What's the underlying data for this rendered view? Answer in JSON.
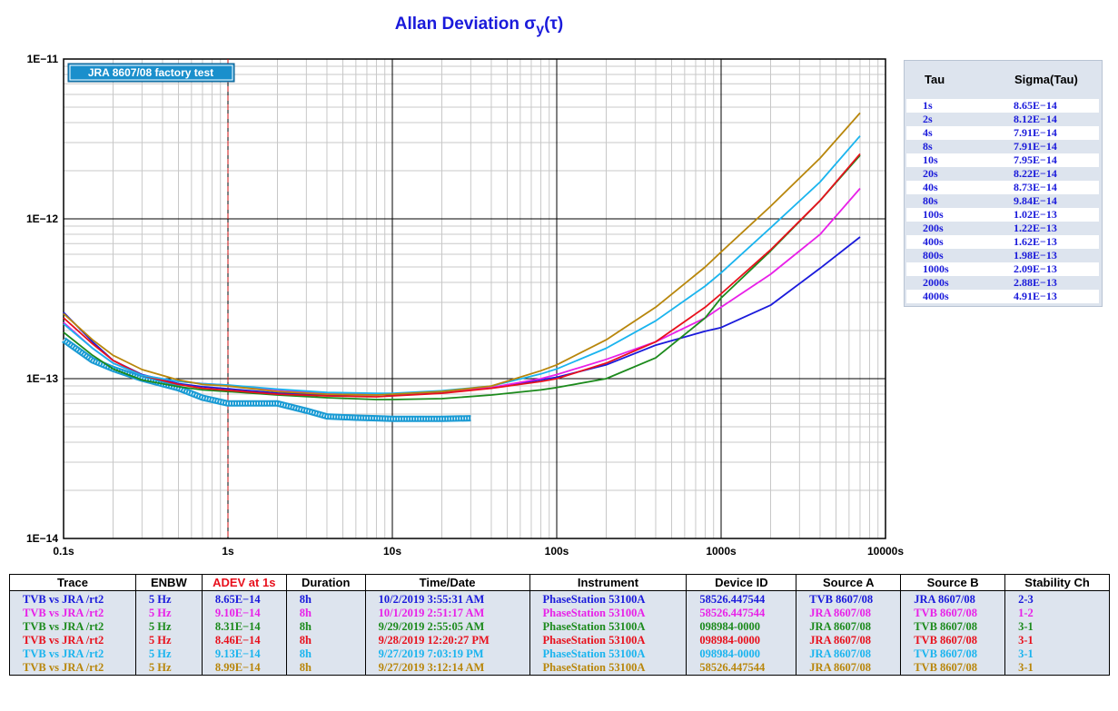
{
  "title": "Allan Deviation σ",
  "title_sub": "y",
  "title_tail": "(τ)",
  "legend_box": "JRA 8607/08 factory test",
  "chart_data": {
    "type": "line",
    "x_scale": "log",
    "y_scale": "log",
    "xlim": [
      0.1,
      10000
    ],
    "ylim": [
      1e-14,
      1e-11
    ],
    "x_tick_labels": [
      "0.1s",
      "1s",
      "10s",
      "100s",
      "1000s",
      "10000s"
    ],
    "y_tick_labels": [
      "1E−14",
      "1E−13",
      "1E−12",
      "1E−11"
    ],
    "grid": true,
    "vertical_marker_x": 1,
    "series": [
      {
        "color": "#1a1adb",
        "points": [
          [
            0.1,
            2.6e-13
          ],
          [
            0.15,
            1.7e-13
          ],
          [
            0.2,
            1.3e-13
          ],
          [
            0.3,
            1.06e-13
          ],
          [
            0.5,
            9.3e-14
          ],
          [
            0.7,
            8.9e-14
          ],
          [
            1,
            8.65e-14
          ],
          [
            2,
            8.12e-14
          ],
          [
            4,
            7.91e-14
          ],
          [
            8,
            7.91e-14
          ],
          [
            10,
            7.95e-14
          ],
          [
            20,
            8.22e-14
          ],
          [
            40,
            8.73e-14
          ],
          [
            80,
            9.84e-14
          ],
          [
            100,
            1.02e-13
          ],
          [
            200,
            1.22e-13
          ],
          [
            400,
            1.62e-13
          ],
          [
            800,
            1.98e-13
          ],
          [
            1000,
            2.09e-13
          ],
          [
            2000,
            2.88e-13
          ],
          [
            4000,
            4.91e-13
          ],
          [
            7000,
            7.7e-13
          ]
        ]
      },
      {
        "color": "#e820e8",
        "points": [
          [
            0.1,
            2.25e-13
          ],
          [
            0.15,
            1.55e-13
          ],
          [
            0.2,
            1.25e-13
          ],
          [
            0.3,
            1.05e-13
          ],
          [
            0.5,
            9.6e-14
          ],
          [
            0.7,
            9.3e-14
          ],
          [
            1,
            9.1e-14
          ],
          [
            2,
            8.5e-14
          ],
          [
            4,
            8.1e-14
          ],
          [
            8,
            8e-14
          ],
          [
            10,
            8e-14
          ],
          [
            20,
            8.3e-14
          ],
          [
            40,
            8.8e-14
          ],
          [
            80,
            1e-13
          ],
          [
            100,
            1.06e-13
          ],
          [
            200,
            1.32e-13
          ],
          [
            400,
            1.7e-13
          ],
          [
            800,
            2.4e-13
          ],
          [
            1000,
            2.8e-13
          ],
          [
            2000,
            4.5e-13
          ],
          [
            4000,
            8e-13
          ],
          [
            7000,
            1.55e-12
          ]
        ]
      },
      {
        "color": "#1c8a1c",
        "points": [
          [
            0.1,
            1.95e-13
          ],
          [
            0.15,
            1.4e-13
          ],
          [
            0.2,
            1.15e-13
          ],
          [
            0.3,
            9.8e-14
          ],
          [
            0.5,
            8.9e-14
          ],
          [
            0.7,
            8.5e-14
          ],
          [
            1,
            8.31e-14
          ],
          [
            2,
            7.9e-14
          ],
          [
            4,
            7.6e-14
          ],
          [
            8,
            7.4e-14
          ],
          [
            10,
            7.4e-14
          ],
          [
            20,
            7.5e-14
          ],
          [
            40,
            7.9e-14
          ],
          [
            80,
            8.5e-14
          ],
          [
            100,
            8.8e-14
          ],
          [
            200,
            1e-13
          ],
          [
            400,
            1.35e-13
          ],
          [
            800,
            2.4e-13
          ],
          [
            1000,
            3.2e-13
          ],
          [
            2000,
            6.3e-13
          ],
          [
            4000,
            1.3e-12
          ],
          [
            7000,
            2.5e-12
          ]
        ]
      },
      {
        "color": "#e8101c",
        "points": [
          [
            0.1,
            2.4e-13
          ],
          [
            0.15,
            1.65e-13
          ],
          [
            0.2,
            1.3e-13
          ],
          [
            0.3,
            1.05e-13
          ],
          [
            0.5,
            9.2e-14
          ],
          [
            0.7,
            8.7e-14
          ],
          [
            1,
            8.46e-14
          ],
          [
            2,
            8e-14
          ],
          [
            4,
            7.8e-14
          ],
          [
            8,
            7.7e-14
          ],
          [
            10,
            7.8e-14
          ],
          [
            20,
            8.1e-14
          ],
          [
            40,
            8.7e-14
          ],
          [
            80,
            9.6e-14
          ],
          [
            100,
            1e-13
          ],
          [
            200,
            1.25e-13
          ],
          [
            400,
            1.7e-13
          ],
          [
            800,
            2.8e-13
          ],
          [
            1000,
            3.4e-13
          ],
          [
            2000,
            6.4e-13
          ],
          [
            4000,
            1.3e-12
          ],
          [
            7000,
            2.55e-12
          ]
        ]
      },
      {
        "color": "#1ab4ee",
        "points": [
          [
            0.1,
            2.2e-13
          ],
          [
            0.15,
            1.55e-13
          ],
          [
            0.2,
            1.25e-13
          ],
          [
            0.3,
            1.05e-13
          ],
          [
            0.5,
            9.6e-14
          ],
          [
            0.7,
            9.3e-14
          ],
          [
            1,
            9.13e-14
          ],
          [
            2,
            8.6e-14
          ],
          [
            4,
            8.2e-14
          ],
          [
            8,
            8.1e-14
          ],
          [
            10,
            8.1e-14
          ],
          [
            20,
            8.4e-14
          ],
          [
            40,
            9e-14
          ],
          [
            80,
            1.07e-13
          ],
          [
            100,
            1.15e-13
          ],
          [
            200,
            1.55e-13
          ],
          [
            400,
            2.3e-13
          ],
          [
            800,
            3.8e-13
          ],
          [
            1000,
            4.6e-13
          ],
          [
            2000,
            8.8e-13
          ],
          [
            4000,
            1.7e-12
          ],
          [
            7000,
            3.3e-12
          ]
        ]
      },
      {
        "color": "#b8860b",
        "points": [
          [
            0.1,
            2.55e-13
          ],
          [
            0.15,
            1.75e-13
          ],
          [
            0.2,
            1.4e-13
          ],
          [
            0.3,
            1.14e-13
          ],
          [
            0.5,
            9.8e-14
          ],
          [
            0.7,
            9.2e-14
          ],
          [
            1,
            8.99e-14
          ],
          [
            2,
            8.3e-14
          ],
          [
            4,
            8e-14
          ],
          [
            8,
            7.9e-14
          ],
          [
            10,
            8e-14
          ],
          [
            20,
            8.3e-14
          ],
          [
            40,
            9e-14
          ],
          [
            80,
            1.12e-13
          ],
          [
            100,
            1.22e-13
          ],
          [
            200,
            1.75e-13
          ],
          [
            400,
            2.8e-13
          ],
          [
            800,
            5e-13
          ],
          [
            1000,
            6.2e-13
          ],
          [
            2000,
            1.2e-12
          ],
          [
            4000,
            2.4e-12
          ],
          [
            7000,
            4.6e-12
          ]
        ]
      }
    ],
    "highlight_series": {
      "color": "#1a9bd4",
      "points": [
        [
          0.1,
          1.75e-13
        ],
        [
          0.15,
          1.3e-13
        ],
        [
          0.2,
          1.15e-13
        ],
        [
          0.3,
          1e-13
        ],
        [
          0.5,
          8.7e-14
        ],
        [
          0.7,
          7.6e-14
        ],
        [
          1,
          7e-14
        ],
        [
          1.5,
          7e-14
        ],
        [
          2,
          7e-14
        ],
        [
          3,
          6.3e-14
        ],
        [
          4,
          5.8e-14
        ],
        [
          6,
          5.7e-14
        ],
        [
          8,
          5.65e-14
        ],
        [
          10,
          5.6e-14
        ],
        [
          20,
          5.6e-14
        ],
        [
          30,
          5.65e-14
        ]
      ]
    }
  },
  "sigma_table": {
    "headers": [
      "Tau",
      "Sigma(Tau)"
    ],
    "rows": [
      [
        "1s",
        "8.65E−14"
      ],
      [
        "2s",
        "8.12E−14"
      ],
      [
        "4s",
        "7.91E−14"
      ],
      [
        "8s",
        "7.91E−14"
      ],
      [
        "10s",
        "7.95E−14"
      ],
      [
        "20s",
        "8.22E−14"
      ],
      [
        "40s",
        "8.73E−14"
      ],
      [
        "80s",
        "9.84E−14"
      ],
      [
        "100s",
        "1.02E−13"
      ],
      [
        "200s",
        "1.22E−13"
      ],
      [
        "400s",
        "1.62E−13"
      ],
      [
        "800s",
        "1.98E−13"
      ],
      [
        "1000s",
        "2.09E−13"
      ],
      [
        "2000s",
        "2.88E−13"
      ],
      [
        "4000s",
        "4.91E−13"
      ]
    ]
  },
  "trace_table": {
    "headers": [
      "Trace",
      "ENBW",
      "ADEV at 1s",
      "Duration",
      "Time/Date",
      "Instrument",
      "Device ID",
      "Source A",
      "Source B",
      "Stability Ch"
    ],
    "adev_header_color": "#e8101c",
    "rows": [
      {
        "color": "#1a1adb",
        "cells": [
          "TVB vs JRA /rt2",
          "5 Hz",
          "8.65E−14",
          "8h",
          "10/2/2019 3:55:31 AM",
          "PhaseStation 53100A",
          "58526.447544",
          "TVB 8607/08",
          "JRA 8607/08",
          "2-3"
        ]
      },
      {
        "color": "#e820e8",
        "cells": [
          "TVB vs JRA /rt2",
          "5 Hz",
          "9.10E−14",
          "8h",
          "10/1/2019 2:51:17 AM",
          "PhaseStation 53100A",
          "58526.447544",
          "JRA 8607/08",
          "TVB 8607/08",
          "1-2"
        ]
      },
      {
        "color": "#1c8a1c",
        "cells": [
          "TVB vs JRA /rt2",
          "5 Hz",
          "8.31E−14",
          "8h",
          "9/29/2019 2:55:05 AM",
          "PhaseStation 53100A",
          "098984-0000",
          "JRA 8607/08",
          "TVB 8607/08",
          "3-1"
        ]
      },
      {
        "color": "#e8101c",
        "cells": [
          "TVB vs JRA /rt2",
          "5 Hz",
          "8.46E−14",
          "8h",
          "9/28/2019 12:20:27 PM",
          "PhaseStation 53100A",
          "098984-0000",
          "JRA 8607/08",
          "TVB 8607/08",
          "3-1"
        ]
      },
      {
        "color": "#1ab4ee",
        "cells": [
          "TVB vs JRA /rt2",
          "5 Hz",
          "9.13E−14",
          "8h",
          "9/27/2019 7:03:19 PM",
          "PhaseStation 53100A",
          "098984-0000",
          "JRA 8607/08",
          "TVB 8607/08",
          "3-1"
        ]
      },
      {
        "color": "#b8860b",
        "cells": [
          "TVB vs JRA /rt2",
          "5 Hz",
          "8.99E−14",
          "8h",
          "9/27/2019 3:12:14 AM",
          "PhaseStation 53100A",
          "58526.447544",
          "JRA 8607/08",
          "TVB 8607/08",
          "3-1"
        ]
      }
    ]
  }
}
